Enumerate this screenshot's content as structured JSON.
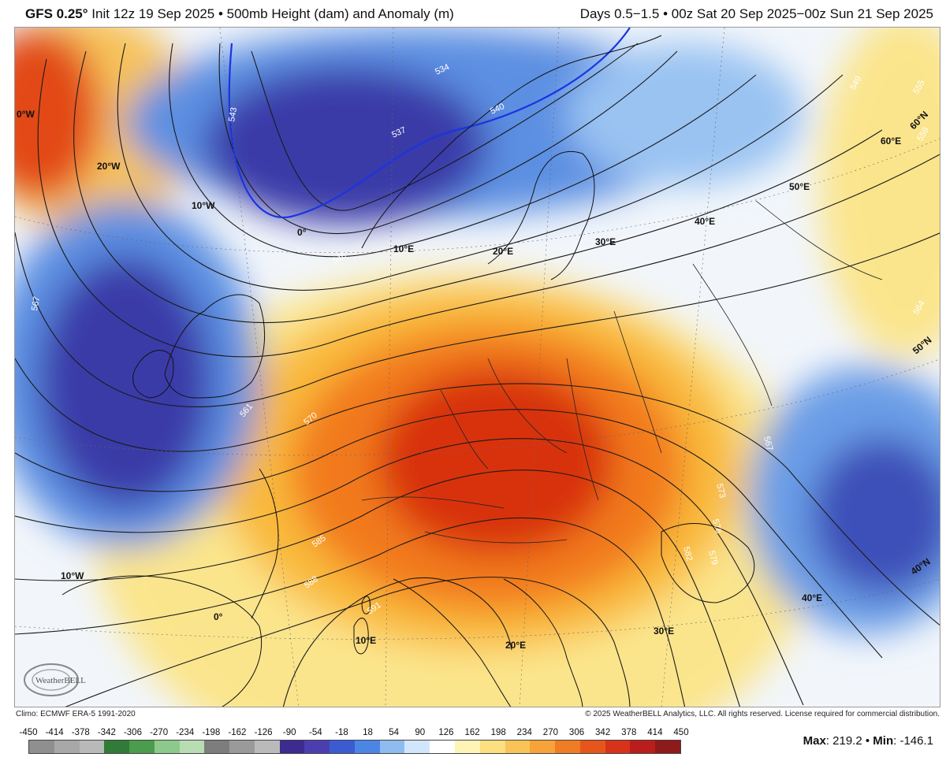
{
  "header": {
    "model": "GFS 0.25°",
    "init_text": "Init 12z 19 Sep 2025 • 500mb Height (dam) and Anomaly (m)",
    "valid_text": "Days 0.5−1.5 • 00z Sat 20 Sep 2025−00z Sun 21 Sep 2025"
  },
  "map": {
    "contour_labels": [
      "534",
      "537",
      "540",
      "543",
      "546",
      "549",
      "555",
      "558",
      "561",
      "564",
      "567",
      "570",
      "573",
      "576",
      "579",
      "582",
      "585",
      "588",
      "591",
      "567"
    ],
    "grid_labels": [
      "0°W",
      "20°W",
      "10°W",
      "0°",
      "10°E",
      "20°E",
      "30°E",
      "40°E",
      "50°E",
      "60°E",
      "60°N",
      "50°N",
      "40°N",
      "10°W",
      "0°",
      "10°E",
      "20°E",
      "30°E",
      "40°E"
    ],
    "colors": {
      "warm_core": "#d8300e",
      "warm_mid": "#f27a1e",
      "warm_light": "#f9b93a",
      "pale_yellow": "#fbe58c",
      "cold_core": "#2e2b9c",
      "cold_mid": "#3d6fd6",
      "cold_light": "#9ac3f2",
      "max_anomaly_line": "#1a34e0"
    }
  },
  "logo": {
    "text": "WeatherBELL"
  },
  "footer": {
    "climo": "Climo: ECMWF ERA-5 1991-2020",
    "copyright": "© 2025 WeatherBELL Analytics, LLC. All rights reserved. License required for commercial distribution."
  },
  "colorbar": {
    "ticks": [
      "-450",
      "-414",
      "-378",
      "-342",
      "-306",
      "-270",
      "-234",
      "-198",
      "-162",
      "-126",
      "-90",
      "-54",
      "-18",
      "18",
      "54",
      "90",
      "126",
      "162",
      "198",
      "234",
      "270",
      "306",
      "342",
      "378",
      "414",
      "450"
    ],
    "colors": [
      "#8f8f8f",
      "#a8a8a8",
      "#b9b9b9",
      "#2f7b37",
      "#4b9c4d",
      "#8dc98a",
      "#b9dcb3",
      "#7d7d7d",
      "#9a9a9a",
      "#bababa",
      "#3d2b8f",
      "#4b3fb0",
      "#3c5bd0",
      "#4b86e4",
      "#8fbcf0",
      "#d2e6fb",
      "#ffffff",
      "#fdf4b6",
      "#fbdf80",
      "#fac357",
      "#f7a33a",
      "#f07c24",
      "#e6561a",
      "#d6331a",
      "#b91e1d",
      "#8e1a1a"
    ]
  },
  "stats": {
    "max_label": "Max",
    "max_value": "219.2",
    "min_label": "Min",
    "min_value": "-146.1"
  }
}
